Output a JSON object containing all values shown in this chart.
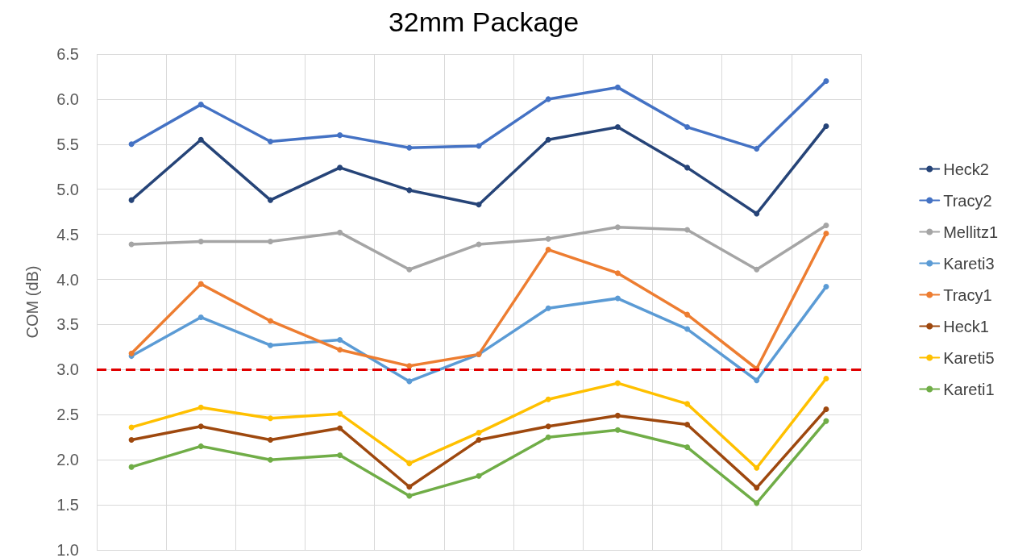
{
  "chart_data": {
    "type": "line",
    "title": "32mm Package",
    "ylabel": "COM (dB)",
    "categories": [
      null,
      null,
      null,
      null,
      null,
      null,
      null,
      null,
      null,
      null,
      null
    ],
    "series": [
      {
        "name": "Heck2",
        "color": "#264478",
        "values": [
          4.88,
          5.55,
          4.88,
          5.24,
          4.99,
          4.83,
          5.55,
          5.69,
          5.24,
          4.73,
          5.7
        ]
      },
      {
        "name": "Tracy2",
        "color": "#4472c4",
        "values": [
          5.5,
          5.94,
          5.53,
          5.6,
          5.46,
          5.48,
          6.0,
          6.13,
          5.69,
          5.45,
          6.2
        ]
      },
      {
        "name": "Mellitz1",
        "color": "#a5a5a5",
        "values": [
          4.39,
          4.42,
          4.42,
          4.52,
          4.11,
          4.39,
          4.45,
          4.58,
          4.55,
          4.11,
          4.6
        ]
      },
      {
        "name": "Kareti3",
        "color": "#5b9bd5",
        "values": [
          3.15,
          3.58,
          3.27,
          3.33,
          2.87,
          3.17,
          3.68,
          3.79,
          3.45,
          2.88,
          3.92
        ]
      },
      {
        "name": "Tracy1",
        "color": "#ed7d31",
        "values": [
          3.18,
          3.95,
          3.54,
          3.22,
          3.04,
          3.17,
          4.33,
          4.07,
          3.61,
          3.01,
          4.51
        ]
      },
      {
        "name": "Heck1",
        "color": "#9e480e",
        "values": [
          2.22,
          2.37,
          2.22,
          2.35,
          1.7,
          2.22,
          2.37,
          2.49,
          2.39,
          1.69,
          2.56
        ]
      },
      {
        "name": "Kareti5",
        "color": "#ffc000",
        "values": [
          2.36,
          2.58,
          2.46,
          2.51,
          1.96,
          2.3,
          2.67,
          2.85,
          2.62,
          1.91,
          2.9
        ]
      },
      {
        "name": "Kareti1",
        "color": "#70ad47",
        "values": [
          1.92,
          2.15,
          2.0,
          2.05,
          1.6,
          1.82,
          2.25,
          2.33,
          2.14,
          1.52,
          2.43
        ]
      }
    ],
    "ylim": [
      1,
      6.5
    ],
    "yticks": [
      {
        "value": 1,
        "label": "1.0"
      },
      1.5,
      {
        "value": 2,
        "label": "2.0"
      },
      2.5,
      {
        "value": 3,
        "label": "3.0"
      },
      3.5,
      {
        "value": 4,
        "label": "4.0"
      },
      4.5,
      {
        "value": 5,
        "label": "5.0"
      },
      5.5,
      {
        "value": 6,
        "label": "6.0"
      },
      6.5
    ],
    "ref_lines": [
      {
        "axis": "y",
        "value": 3,
        "color": "#e00000",
        "line_style": "dashed"
      }
    ],
    "grid": true,
    "legend": "right",
    "marker": "circle",
    "line_style": "solid"
  }
}
